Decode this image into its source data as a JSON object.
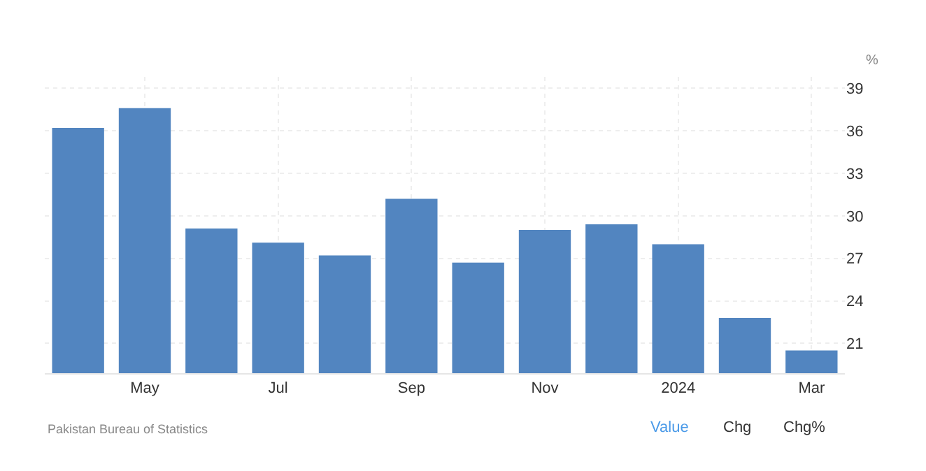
{
  "chart_data": {
    "type": "bar",
    "ylabel": "%",
    "categories": [
      null,
      "May",
      null,
      "Jul",
      null,
      "Sep",
      null,
      "Nov",
      null,
      "2024",
      null,
      "Mar"
    ],
    "values": [
      36.2,
      37.6,
      29.1,
      28.1,
      27.2,
      31.2,
      26.7,
      29.0,
      29.4,
      28.0,
      22.8,
      20.5
    ],
    "color": "#5285c0",
    "ylim": [
      18.9,
      39.8
    ],
    "yticks": [
      21,
      24,
      27,
      30,
      33,
      36,
      39
    ],
    "grid": true,
    "legend": false,
    "annotations": [
      "Pakistan Bureau of Statistics",
      "Value",
      "Chg",
      "Chg%"
    ]
  }
}
